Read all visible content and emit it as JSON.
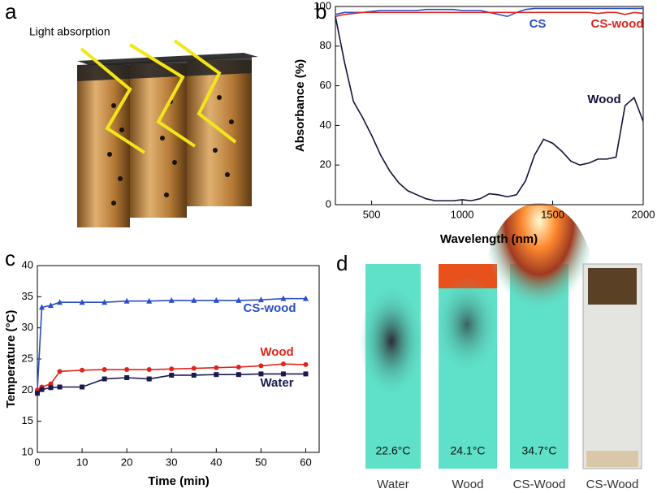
{
  "panel_labels": [
    "a",
    "b",
    "c",
    "d"
  ],
  "illustration": {
    "label": "Light absorption"
  },
  "chart_data": [
    {
      "type": "line",
      "xlabel": "Wavelength (nm)",
      "ylabel": "Absorbance (%)",
      "x": [
        300,
        350,
        400,
        450,
        500,
        550,
        600,
        650,
        700,
        750,
        800,
        850,
        900,
        950,
        1000,
        1050,
        1100,
        1150,
        1200,
        1250,
        1300,
        1350,
        1400,
        1450,
        1500,
        1550,
        1600,
        1650,
        1700,
        1750,
        1800,
        1850,
        1900,
        1950,
        2000
      ],
      "xlim": [
        300,
        2000
      ],
      "xticks": [
        500,
        1000,
        1500,
        2000
      ],
      "ylim": [
        0,
        100
      ],
      "yticks": [
        0,
        20,
        40,
        60,
        80,
        100
      ],
      "series": [
        {
          "name": "CS",
          "color": "#2b4fc4",
          "marker": "none",
          "values": [
            96,
            97,
            97,
            97,
            97.5,
            98,
            98,
            98,
            98,
            98,
            98.5,
            98.5,
            98.5,
            98.5,
            98,
            98,
            98,
            97,
            96,
            95,
            97,
            98.5,
            99,
            99,
            99,
            99,
            99,
            99,
            99,
            99,
            99,
            99,
            99,
            99,
            99
          ]
        },
        {
          "name": "CS-wood",
          "color": "#e0241c",
          "marker": "none",
          "values": [
            95,
            96,
            96.5,
            97,
            97,
            97,
            97,
            97,
            97,
            97,
            97,
            97,
            97,
            97,
            97,
            97,
            97,
            97,
            97,
            97,
            97,
            97,
            97,
            97,
            97,
            97,
            97,
            97,
            97,
            96.5,
            97,
            97,
            96,
            97,
            96.5
          ]
        },
        {
          "name": "Wood",
          "color": "#14123a",
          "marker": "none",
          "values": [
            95,
            72,
            52,
            44,
            35,
            25,
            17,
            11,
            7,
            5,
            3,
            2,
            2,
            2,
            2.5,
            2,
            3,
            5.5,
            5,
            4,
            5,
            12,
            25,
            33,
            31,
            27,
            22,
            20,
            21,
            23,
            23,
            24,
            50,
            54,
            42
          ]
        }
      ]
    },
    {
      "type": "line",
      "xlabel": "Time (min)",
      "ylabel": "Temperature (°C)",
      "x": [
        0,
        1,
        3,
        5,
        10,
        15,
        20,
        25,
        30,
        35,
        40,
        45,
        50,
        55,
        60
      ],
      "xlim": [
        0,
        63
      ],
      "xticks": [
        0,
        10,
        20,
        30,
        40,
        50,
        60
      ],
      "ylim": [
        10,
        40
      ],
      "yticks": [
        10,
        15,
        20,
        25,
        30,
        35,
        40
      ],
      "series": [
        {
          "name": "CS-wood",
          "color": "#2b4fc4",
          "marker": "triangle",
          "values": [
            20,
            33.3,
            33.6,
            34.1,
            34.1,
            34.1,
            34.3,
            34.3,
            34.4,
            34.4,
            34.4,
            34.4,
            34.5,
            34.7,
            34.7
          ]
        },
        {
          "name": "Wood",
          "color": "#e0241c",
          "marker": "circle",
          "values": [
            20,
            20.5,
            21,
            23,
            23.2,
            23.3,
            23.3,
            23.3,
            23.4,
            23.5,
            23.6,
            23.7,
            23.9,
            24.2,
            24.1
          ]
        },
        {
          "name": "Water",
          "color": "#1a1a4e",
          "marker": "square",
          "values": [
            19.5,
            20.1,
            20.4,
            20.5,
            20.5,
            21.8,
            22,
            21.8,
            22.4,
            22.4,
            22.5,
            22.5,
            22.6,
            22.6,
            22.6
          ]
        }
      ]
    }
  ],
  "photos": [
    {
      "temperature": "22.6°C",
      "caption": "Water"
    },
    {
      "temperature": "24.1°C",
      "caption": "Wood"
    },
    {
      "temperature": "34.7°C",
      "caption": "CS-Wood"
    },
    {
      "caption": "CS-Wood"
    }
  ]
}
